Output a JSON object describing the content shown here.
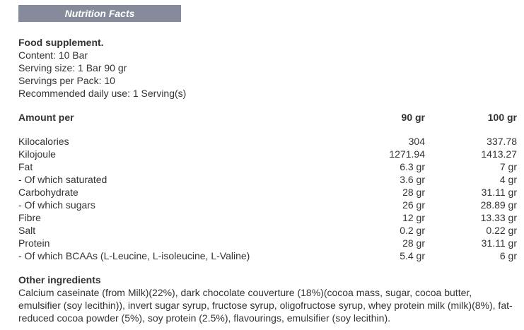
{
  "title": "Nutrition Facts",
  "info": {
    "heading": "Food supplement.",
    "lines": [
      "Content: 10 Bar",
      "Serving size: 1 Bar 90 gr",
      "Servings per Pack: 10",
      "Recommended daily use: 1 Serving(s)"
    ]
  },
  "table": {
    "headers": [
      "Amount per",
      "90 gr",
      "100 gr"
    ],
    "rows": [
      [
        "Kilocalories",
        "304",
        "337.78"
      ],
      [
        "Kilojoule",
        "1271.94",
        "1413.27"
      ],
      [
        "Fat",
        "6.3 gr",
        "7 gr"
      ],
      [
        "- Of which saturated",
        "3.6 gr",
        "4 gr"
      ],
      [
        "Carbohydrate",
        "28 gr",
        "31.11 gr"
      ],
      [
        "- Of which sugars",
        "26 gr",
        "28.89 gr"
      ],
      [
        "Fibre",
        "12 gr",
        "13.33 gr"
      ],
      [
        "Salt",
        "0.2 gr",
        "0.22 gr"
      ],
      [
        "Protein",
        "28 gr",
        "31.11 gr"
      ],
      [
        "- Of which BCAAs (L-Leucine, L-isoleucine, L-Valine)",
        "5.4 gr",
        "6 gr"
      ]
    ]
  },
  "ingredients": {
    "heading": "Other ingredients",
    "text": "Calcium caseinate (from Milk)(22%), dark chocolate couverture (18%)(cocoa mass, sugar, cocoa butter, emulsifier (soy lecithin)), invert sugar syrup, fructose syrup, oligofructose syrup, whey protein milk (milk)(8%), fat-reduced cocoa powder (5%), soy protein (2.5%), flavourings, emulsifier (soy lecithin)."
  }
}
